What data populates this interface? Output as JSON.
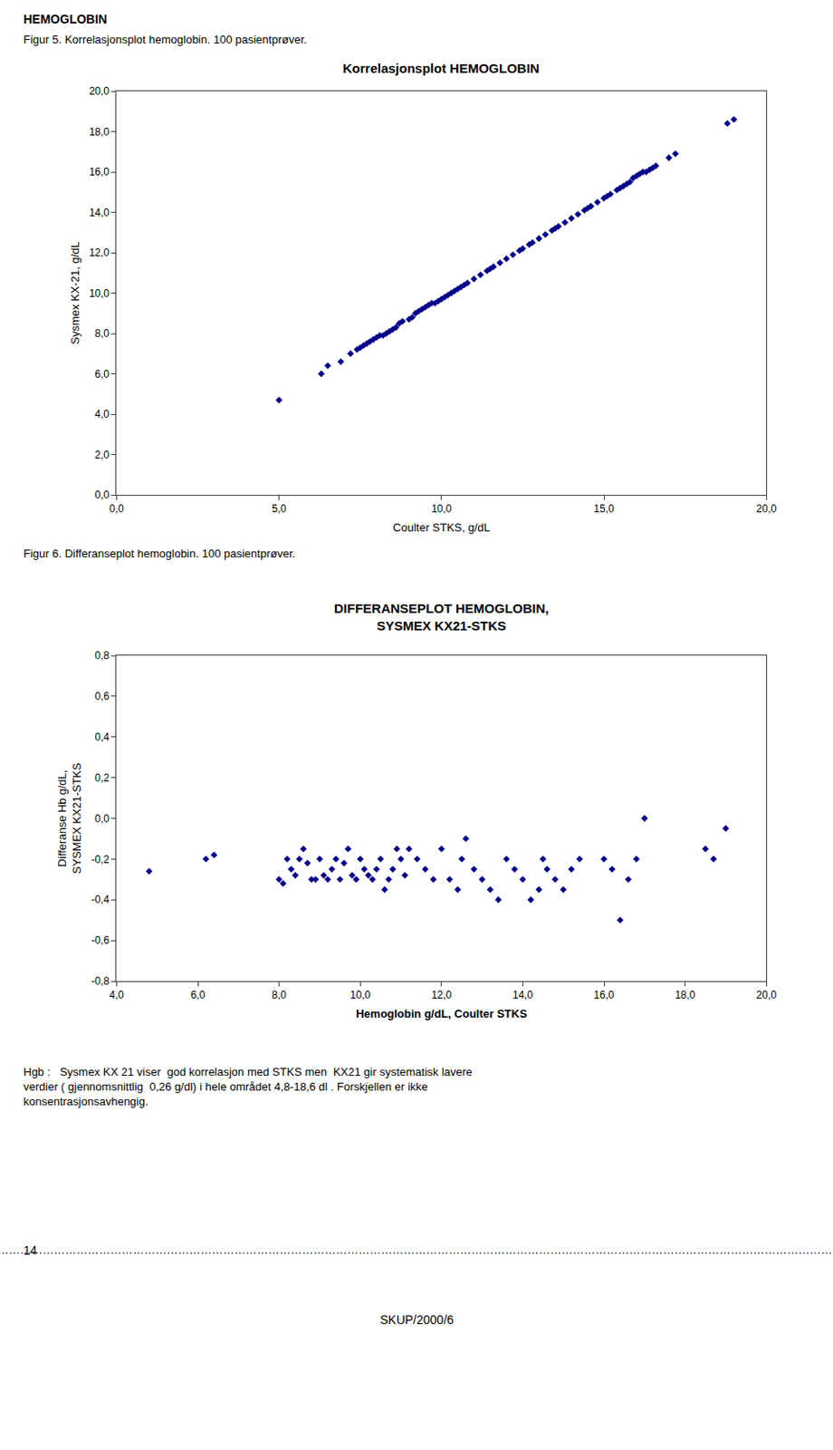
{
  "chart_data": [
    {
      "type": "scatter",
      "title": "Korrelasjonsplot HEMOGLOBIN",
      "annotations": [
        "HEMOGLOBIN",
        "Figur 5. Korrelasjonsplot hemoglobin. 100 pasientprøver."
      ],
      "x_label": "Coulter STKS, g/dL",
      "y_label": "Sysmex KX-21, g/dL",
      "x": [
        5.0,
        6.3,
        6.5,
        6.9,
        7.2,
        7.4,
        7.5,
        7.6,
        7.7,
        7.8,
        7.9,
        8.0,
        8.1,
        8.2,
        8.3,
        8.4,
        8.5,
        8.6,
        8.7,
        8.8,
        9.0,
        9.1,
        9.2,
        9.3,
        9.4,
        9.5,
        9.6,
        9.7,
        9.8,
        9.9,
        10.0,
        10.1,
        10.2,
        10.3,
        10.4,
        10.5,
        10.6,
        10.7,
        10.8,
        11.0,
        11.2,
        11.4,
        11.5,
        11.6,
        11.8,
        12.0,
        12.2,
        12.4,
        12.5,
        12.7,
        12.8,
        13.0,
        13.2,
        13.4,
        13.5,
        13.6,
        13.8,
        14.0,
        14.2,
        14.4,
        14.5,
        14.6,
        14.8,
        15.0,
        15.1,
        15.2,
        15.4,
        15.5,
        15.6,
        15.7,
        15.8,
        15.9,
        16.0,
        16.1,
        16.2,
        16.3,
        16.4,
        16.5,
        16.6,
        17.0,
        17.2,
        18.8,
        19.0
      ],
      "values": [
        4.7,
        6.0,
        6.4,
        6.6,
        7.0,
        7.2,
        7.3,
        7.4,
        7.5,
        7.6,
        7.7,
        7.8,
        7.9,
        7.9,
        8.0,
        8.1,
        8.2,
        8.3,
        8.5,
        8.6,
        8.7,
        8.8,
        9.0,
        9.1,
        9.2,
        9.3,
        9.4,
        9.5,
        9.5,
        9.6,
        9.7,
        9.8,
        9.9,
        10.0,
        10.1,
        10.2,
        10.3,
        10.4,
        10.5,
        10.7,
        10.9,
        11.1,
        11.2,
        11.3,
        11.5,
        11.7,
        11.9,
        12.1,
        12.2,
        12.4,
        12.5,
        12.7,
        12.9,
        13.1,
        13.2,
        13.3,
        13.5,
        13.7,
        13.9,
        14.1,
        14.2,
        14.3,
        14.5,
        14.7,
        14.8,
        14.9,
        15.1,
        15.2,
        15.3,
        15.4,
        15.5,
        15.7,
        15.8,
        15.9,
        16.0,
        16.0,
        16.1,
        16.2,
        16.3,
        16.7,
        16.9,
        18.4,
        18.6
      ],
      "color": "#00008B",
      "marker": "diamond",
      "xlim": [
        0,
        20
      ],
      "xticks": [
        {
          "value": 0,
          "label": "0,0"
        },
        {
          "value": 5,
          "label": "5,0"
        },
        {
          "value": 10,
          "label": "10,0"
        },
        {
          "value": 15,
          "label": "15,0"
        },
        {
          "value": 20,
          "label": "20,0"
        }
      ],
      "ylim": [
        0,
        20
      ],
      "yticks": [
        {
          "value": 0,
          "label": "0,0"
        },
        {
          "value": 2,
          "label": "2,0"
        },
        {
          "value": 4,
          "label": "4,0"
        },
        {
          "value": 6,
          "label": "6,0"
        },
        {
          "value": 8,
          "label": "8,0"
        },
        {
          "value": 10,
          "label": "10,0"
        },
        {
          "value": 12,
          "label": "12,0"
        },
        {
          "value": 14,
          "label": "14,0"
        },
        {
          "value": 16,
          "label": "16,0"
        },
        {
          "value": 18,
          "label": "18,0"
        },
        {
          "value": 20,
          "label": "20,0"
        }
      ],
      "grid": false
    },
    {
      "type": "scatter",
      "title": "DIFFERANSEPLOT HEMOGLOBIN,\nSYSMEX KX21-STKS",
      "annotations": [
        "Figur 6. Differanseplot hemoglobin. 100 pasientprøver.",
        "Hgb :   Sysmex KX 21 viser  god korrelasjon med STKS men  KX21 gir systematisk lavere\nverdier ( gjennomsnittlig  0,26 g/dl) i hele området 4,8-18,6 dl . Forskjellen er ikke\nkonsentrasjonsavhengig.",
        "14",
        "…………………………………………………………………………………………………………………………………………………………………………………………………………………………………………………………………………………….",
        "SKUP/2000/6"
      ],
      "x_label": "Hemoglobin g/dL, Coulter STKS",
      "y_label": "Differanse Hb g/dL,\nSYSMEX KX21-STKS",
      "x": [
        4.8,
        6.2,
        6.4,
        8.0,
        8.1,
        8.2,
        8.3,
        8.4,
        8.5,
        8.6,
        8.7,
        8.8,
        8.9,
        9.0,
        9.1,
        9.2,
        9.3,
        9.4,
        9.5,
        9.6,
        9.7,
        9.8,
        9.9,
        10.0,
        10.1,
        10.2,
        10.3,
        10.4,
        10.5,
        10.6,
        10.7,
        10.8,
        10.9,
        11.0,
        11.1,
        11.2,
        11.4,
        11.6,
        11.8,
        12.0,
        12.2,
        12.4,
        12.5,
        12.6,
        12.8,
        13.0,
        13.2,
        13.4,
        13.6,
        13.8,
        14.0,
        14.2,
        14.4,
        14.5,
        14.6,
        14.8,
        15.0,
        15.2,
        15.4,
        16.0,
        16.2,
        16.4,
        16.6,
        16.8,
        17.0,
        18.5,
        18.7,
        19.0
      ],
      "values": [
        -0.26,
        -0.2,
        -0.18,
        -0.3,
        -0.32,
        -0.2,
        -0.25,
        -0.28,
        -0.2,
        -0.15,
        -0.22,
        -0.3,
        -0.3,
        -0.2,
        -0.28,
        -0.3,
        -0.25,
        -0.2,
        -0.3,
        -0.22,
        -0.15,
        -0.28,
        -0.3,
        -0.2,
        -0.25,
        -0.28,
        -0.3,
        -0.25,
        -0.2,
        -0.35,
        -0.3,
        -0.25,
        -0.15,
        -0.2,
        -0.28,
        -0.15,
        -0.2,
        -0.25,
        -0.3,
        -0.15,
        -0.3,
        -0.35,
        -0.2,
        -0.1,
        -0.25,
        -0.3,
        -0.35,
        -0.4,
        -0.2,
        -0.25,
        -0.3,
        -0.4,
        -0.35,
        -0.2,
        -0.25,
        -0.3,
        -0.35,
        -0.25,
        -0.2,
        -0.2,
        -0.25,
        -0.5,
        -0.3,
        -0.2,
        0.0,
        -0.15,
        -0.2,
        -0.05
      ],
      "color": "#00008B",
      "marker": "diamond",
      "xlim": [
        4,
        20
      ],
      "xticks": [
        {
          "value": 4,
          "label": "4,0"
        },
        {
          "value": 6,
          "label": "6,0"
        },
        {
          "value": 8,
          "label": "8,0"
        },
        {
          "value": 10,
          "label": "10,0"
        },
        {
          "value": 12,
          "label": "12,0"
        },
        {
          "value": 14,
          "label": "14,0"
        },
        {
          "value": 16,
          "label": "16,0"
        },
        {
          "value": 18,
          "label": "18,0"
        },
        {
          "value": 20,
          "label": "20,0"
        }
      ],
      "ylim": [
        -0.8,
        0.8
      ],
      "yticks": [
        {
          "value": -0.8,
          "label": "-0,8"
        },
        {
          "value": -0.6,
          "label": "-0,6"
        },
        {
          "value": -0.4,
          "label": "-0,4"
        },
        {
          "value": -0.2,
          "label": "-0,2"
        },
        {
          "value": 0,
          "label": "0,0"
        },
        {
          "value": 0.2,
          "label": "0,2"
        },
        {
          "value": 0.4,
          "label": "0,4"
        },
        {
          "value": 0.6,
          "label": "0,6"
        },
        {
          "value": 0.8,
          "label": "0,8"
        }
      ],
      "grid": false
    }
  ]
}
